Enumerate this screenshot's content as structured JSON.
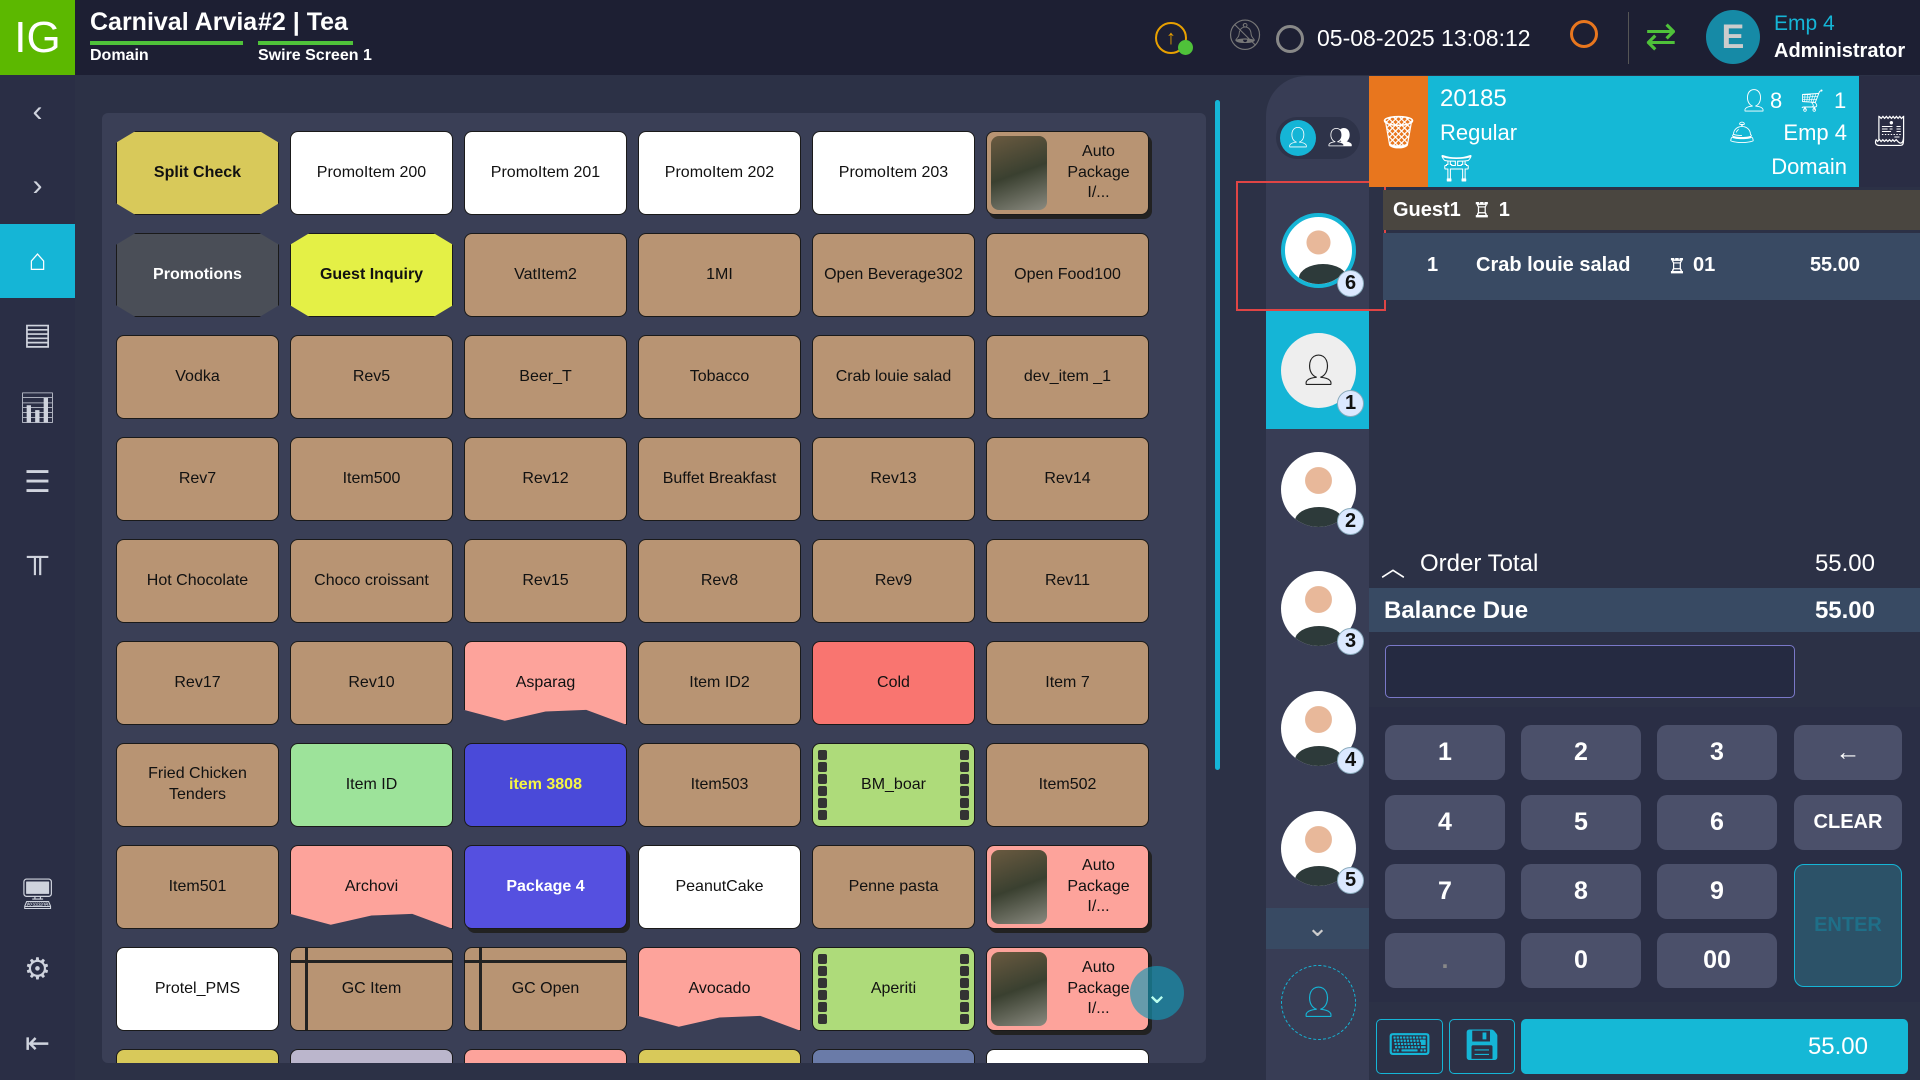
{
  "header": {
    "logo": "IG",
    "property": "Carnival Arvia",
    "property_sub": "Domain",
    "terminal": "#2 | Tea",
    "terminal_sub": "Swire Screen 1",
    "datetime": "05-08-2025 13:08:12",
    "user_initial": "E",
    "user_name": "Emp 4",
    "user_role": "Administrator",
    "icons": [
      "upload-sync-icon",
      "bell-off-icon",
      "clock-icon",
      "search-icon",
      "refresh-icon"
    ]
  },
  "sidebar": {
    "items": [
      "back",
      "forward",
      "home",
      "orders",
      "reports",
      "layout",
      "tables",
      "lock-terminal",
      "settings",
      "logout"
    ],
    "active": "home"
  },
  "colors": {
    "accent": "#15b5d6",
    "orange": "#e8761e",
    "logo": "#5cb800"
  },
  "tiles": [
    [
      {
        "label": "Split Check",
        "style": "hex",
        "color": "#d8c95a"
      },
      {
        "label": "PromoItem 200",
        "color": "#ffffff"
      },
      {
        "label": "PromoItem 201",
        "color": "#ffffff"
      },
      {
        "label": "PromoItem 202",
        "color": "#ffffff"
      },
      {
        "label": "PromoItem 203",
        "color": "#ffffff"
      },
      {
        "label": "Auto Package I/...",
        "style": "pkg",
        "color": "#b89473"
      }
    ],
    [
      {
        "label": "Promotions",
        "style": "hex",
        "color": "#4a4e57",
        "text": "#ffffff"
      },
      {
        "label": "Guest Inquiry",
        "style": "hex",
        "color": "#e4f046"
      },
      {
        "label": "VatItem2",
        "color": "#b89473"
      },
      {
        "label": "1MI",
        "color": "#b89473"
      },
      {
        "label": "Open Beverage302",
        "color": "#b89473"
      },
      {
        "label": "Open Food100",
        "color": "#b89473"
      }
    ],
    [
      {
        "label": "Vodka",
        "color": "#b89473"
      },
      {
        "label": "Rev5",
        "color": "#b89473"
      },
      {
        "label": "Beer_T",
        "color": "#b89473"
      },
      {
        "label": "Tobacco",
        "color": "#b89473"
      },
      {
        "label": "Crab louie salad",
        "color": "#b89473"
      },
      {
        "label": "dev_item _1",
        "color": "#b89473"
      }
    ],
    [
      {
        "label": "Rev7",
        "color": "#b89473"
      },
      {
        "label": "Item500",
        "color": "#b89473"
      },
      {
        "label": "Rev12",
        "color": "#b89473"
      },
      {
        "label": "Buffet Breakfast",
        "color": "#b89473"
      },
      {
        "label": "Rev13",
        "color": "#b89473"
      },
      {
        "label": "Rev14",
        "color": "#b89473"
      }
    ],
    [
      {
        "label": "Hot Chocolate",
        "color": "#b89473"
      },
      {
        "label": "Choco croissant",
        "color": "#b89473"
      },
      {
        "label": "Rev15",
        "color": "#b89473"
      },
      {
        "label": "Rev8",
        "color": "#b89473"
      },
      {
        "label": "Rev9",
        "color": "#b89473"
      },
      {
        "label": "Rev11",
        "color": "#b89473"
      }
    ],
    [
      {
        "label": "Rev17",
        "color": "#b89473"
      },
      {
        "label": "Rev10",
        "color": "#b89473"
      },
      {
        "label": "Asparag",
        "style": "wave",
        "color": "#fda39b"
      },
      {
        "label": "Item ID2",
        "color": "#b89473"
      },
      {
        "label": "Cold",
        "color": "#f97570"
      },
      {
        "label": "Item 7",
        "color": "#b89473"
      }
    ],
    [
      {
        "label": "Fried Chicken Tenders",
        "color": "#b89473"
      },
      {
        "label": "Item ID",
        "color": "#9de39a"
      },
      {
        "label": "item 3808",
        "color": "#4a4ad9",
        "text": "#f5f542"
      },
      {
        "label": "Item503",
        "color": "#b89473"
      },
      {
        "label": "BM_boar",
        "style": "film",
        "color": "#aedb7a"
      },
      {
        "label": "Item502",
        "color": "#b89473"
      }
    ],
    [
      {
        "label": "Item501",
        "color": "#b89473"
      },
      {
        "label": "Archovi",
        "style": "wave",
        "color": "#fda39b"
      },
      {
        "label": "Package 4",
        "style": "stack",
        "color": "#5550e0",
        "text": "#ffffff"
      },
      {
        "label": "PeanutCake",
        "color": "#ffffff"
      },
      {
        "label": "Penne pasta",
        "color": "#b89473"
      },
      {
        "label": "Auto Package I/...",
        "style": "pkg",
        "color": "#fda39b"
      }
    ],
    [
      {
        "label": "Protel_PMS",
        "color": "#ffffff"
      },
      {
        "label": "GC Item",
        "style": "gift",
        "color": "#b89473"
      },
      {
        "label": "GC Open",
        "style": "gift",
        "color": "#b89473"
      },
      {
        "label": "Avocado",
        "style": "wave",
        "color": "#fda39b"
      },
      {
        "label": "Aperiti",
        "style": "film",
        "color": "#aedb7a"
      },
      {
        "label": "Auto Package I/...",
        "style": "pkg",
        "color": "#fda39b"
      }
    ],
    [
      {
        "label": "",
        "color": "#d8c95a"
      },
      {
        "label": "",
        "color": "#bbb6cc"
      },
      {
        "label": "",
        "color": "#fda39b"
      },
      {
        "label": "",
        "color": "#d8c95a"
      },
      {
        "label": "",
        "color": "#6a7ba8"
      },
      {
        "label": "",
        "color": "#ffffff"
      }
    ]
  ],
  "guests": {
    "seat_counts": [
      "6",
      "1",
      "2",
      "3",
      "4",
      "5"
    ],
    "active": "1"
  },
  "check": {
    "number": "20185",
    "type": "Regular",
    "covers": "8",
    "cart_count": "1",
    "server": "Emp 4",
    "revenue_center": "Domain"
  },
  "order": {
    "guest": "Guest1",
    "seat": "1",
    "items": [
      {
        "qty": "1",
        "name": "Crab louie salad",
        "seat": "01",
        "price": "55.00"
      }
    ]
  },
  "totals": {
    "order_total_label": "Order Total",
    "order_total": "55.00",
    "balance_label": "Balance Due",
    "balance": "55.00",
    "input_value": ""
  },
  "keypad": [
    "1",
    "2",
    "3",
    "←",
    "4",
    "5",
    "6",
    "CLEAR",
    "7",
    "8",
    "9",
    "ENTER",
    ".",
    "0",
    "00"
  ],
  "pay_amount": "55.00"
}
